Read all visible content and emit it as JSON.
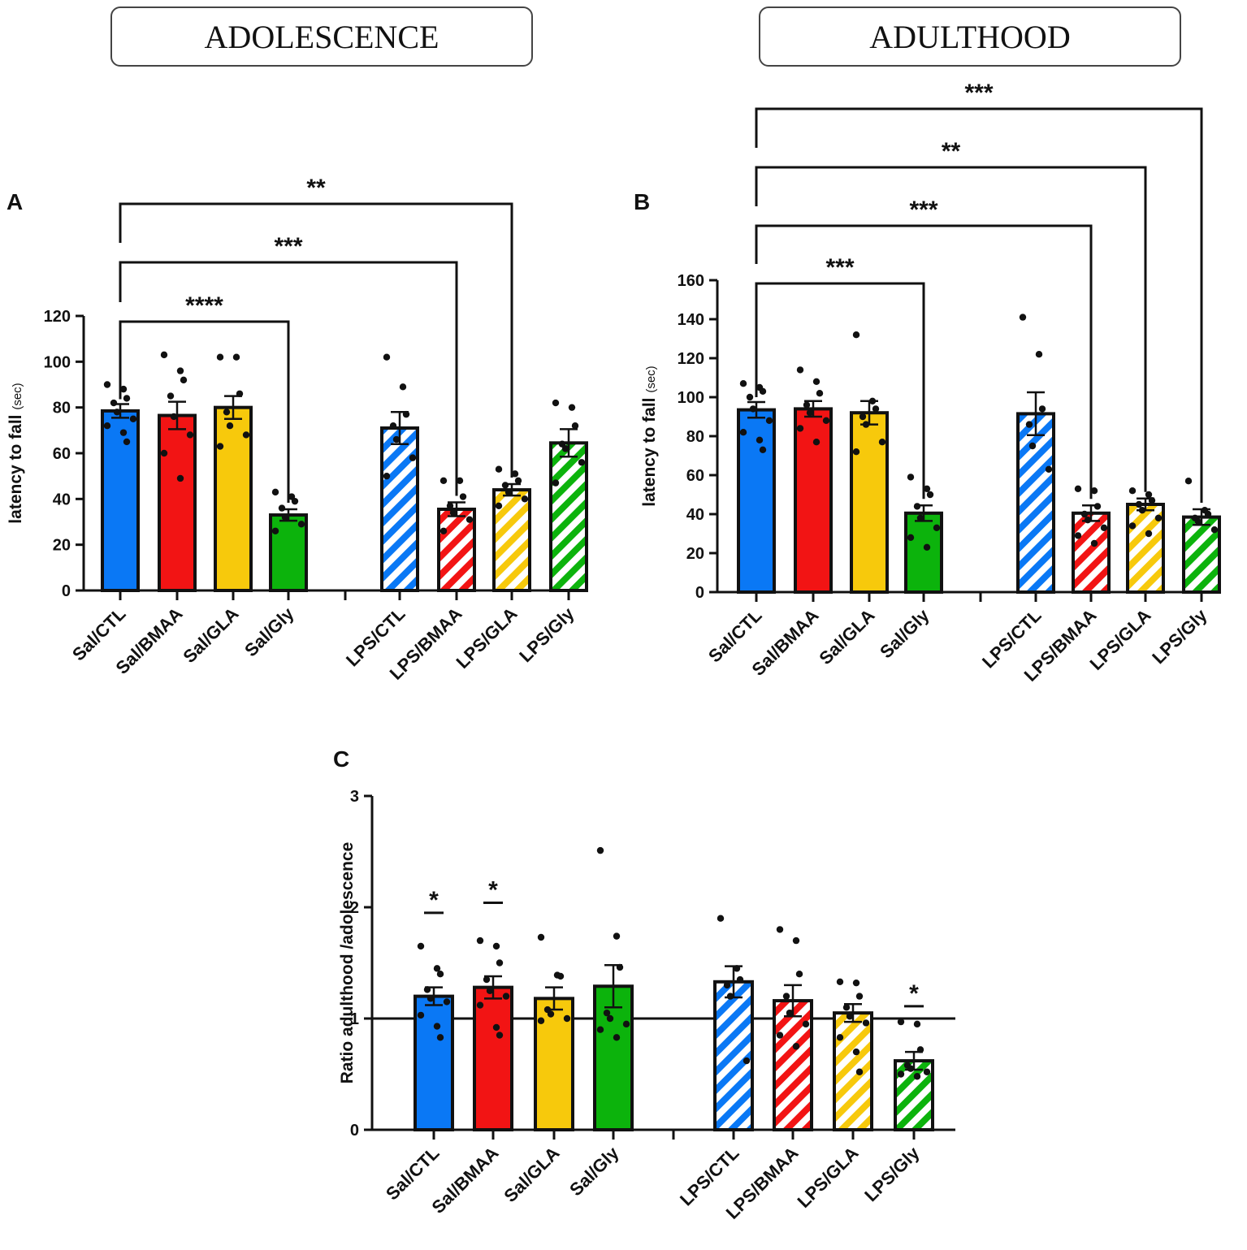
{
  "headers": {
    "left": "ADOLESCENCE",
    "right": "ADULTHOOD"
  },
  "colors": {
    "CTL": "#0a78f5",
    "BMAA": "#f21414",
    "GLA": "#f7c90c",
    "Gly": "#0cb30c",
    "outline": "#111111"
  },
  "chart_data": [
    {
      "panel": "A",
      "type": "bar",
      "ylabel": "latency to fall",
      "ylabel_unit": "(sec)",
      "ylim": [
        0,
        120
      ],
      "yticks": [
        0,
        20,
        40,
        60,
        80,
        100,
        120
      ],
      "categories": [
        "Sal/CTL",
        "Sal/BMAA",
        "Sal/GLA",
        "Sal/Gly",
        "LPS/CTL",
        "LPS/BMAA",
        "LPS/GLA",
        "LPS/Gly"
      ],
      "values": [
        78.5,
        76.5,
        80,
        33,
        71,
        35.5,
        44,
        64.5
      ],
      "sem": [
        3,
        6,
        5,
        2.5,
        7,
        3,
        2.5,
        6
      ],
      "points": [
        [
          90,
          88,
          84,
          82,
          78,
          75,
          72,
          69,
          65
        ],
        [
          103,
          96,
          92,
          85,
          76,
          68,
          60,
          49
        ],
        [
          102,
          102,
          86,
          78,
          72,
          68,
          63
        ],
        [
          43,
          41,
          39,
          36,
          32,
          29,
          26
        ],
        [
          102,
          89,
          77,
          72,
          66,
          58,
          50
        ],
        [
          48,
          48,
          41,
          37,
          34,
          31,
          26
        ],
        [
          53,
          51,
          48,
          46,
          43,
          40,
          37
        ],
        [
          82,
          80,
          72,
          64,
          62,
          56,
          47
        ]
      ],
      "brackets": [
        {
          "from": "Sal/CTL",
          "to": "Sal/Gly",
          "label": "****"
        },
        {
          "from": "Sal/CTL",
          "to": "LPS/BMAA",
          "label": "***"
        },
        {
          "from": "Sal/CTL",
          "to": "LPS/GLA",
          "label": "**"
        }
      ]
    },
    {
      "panel": "B",
      "type": "bar",
      "ylabel": "latency to fall",
      "ylabel_unit": "(sec)",
      "ylim": [
        0,
        160
      ],
      "yticks": [
        0,
        20,
        40,
        60,
        80,
        100,
        120,
        140,
        160
      ],
      "categories": [
        "Sal/CTL",
        "Sal/BMAA",
        "Sal/GLA",
        "Sal/Gly",
        "LPS/CTL",
        "LPS/BMAA",
        "LPS/GLA",
        "LPS/Gly"
      ],
      "values": [
        93.5,
        94,
        92,
        40.5,
        91.5,
        40.5,
        45,
        38.5
      ],
      "sem": [
        4,
        4,
        6,
        4,
        11,
        4,
        3,
        4
      ],
      "points": [
        [
          107,
          105,
          103,
          100,
          94,
          88,
          82,
          78,
          73
        ],
        [
          114,
          108,
          102,
          96,
          92,
          88,
          84,
          77
        ],
        [
          132,
          98,
          94,
          90,
          86,
          77,
          72
        ],
        [
          59,
          53,
          50,
          44,
          38,
          33,
          28,
          23
        ],
        [
          141,
          122,
          94,
          86,
          75,
          63
        ],
        [
          53,
          52,
          44,
          40,
          37,
          33,
          29,
          25
        ],
        [
          52,
          50,
          47,
          45,
          42,
          38,
          34,
          30
        ],
        [
          57,
          42,
          40,
          38,
          36,
          32
        ]
      ],
      "brackets": [
        {
          "from": "Sal/CTL",
          "to": "Sal/Gly",
          "label": "***"
        },
        {
          "from": "Sal/CTL",
          "to": "LPS/BMAA",
          "label": "***"
        },
        {
          "from": "Sal/CTL",
          "to": "LPS/GLA",
          "label": "**"
        },
        {
          "from": "Sal/CTL",
          "to": "LPS/Gly",
          "label": "***"
        }
      ]
    },
    {
      "panel": "C",
      "type": "bar",
      "ylabel": "Ratio adulthood /adolescence",
      "ylim": [
        0,
        3
      ],
      "yticks": [
        0,
        1,
        2,
        3
      ],
      "reference_line": 1,
      "categories": [
        "Sal/CTL",
        "Sal/BMAA",
        "Sal/GLA",
        "Sal/Gly",
        "LPS/CTL",
        "LPS/BMAA",
        "LPS/GLA",
        "LPS/Gly"
      ],
      "values": [
        1.2,
        1.28,
        1.18,
        1.29,
        1.33,
        1.16,
        1.05,
        0.62
      ],
      "sem": [
        0.08,
        0.1,
        0.1,
        0.19,
        0.14,
        0.14,
        0.08,
        0.08
      ],
      "points": [
        [
          1.65,
          1.45,
          1.4,
          1.26,
          1.18,
          1.15,
          1.03,
          0.93,
          0.83
        ],
        [
          1.7,
          1.65,
          1.5,
          1.35,
          1.25,
          1.2,
          1.12,
          0.92,
          0.85
        ],
        [
          1.73,
          1.39,
          1.38,
          1.08,
          1.04,
          1.0,
          0.98
        ],
        [
          2.51,
          1.74,
          1.46,
          1.05,
          1.0,
          0.95,
          0.9,
          0.83
        ],
        [
          1.9,
          1.45,
          1.35,
          1.3,
          1.2,
          0.62
        ],
        [
          1.8,
          1.7,
          1.4,
          1.2,
          1.05,
          0.95,
          0.85,
          0.75
        ],
        [
          1.33,
          1.32,
          1.2,
          1.1,
          1.02,
          0.96,
          0.83,
          0.7,
          0.52
        ],
        [
          0.97,
          0.95,
          0.72,
          0.58,
          0.55,
          0.52,
          0.5,
          0.48
        ]
      ],
      "significance": [
        {
          "category": "Sal/CTL",
          "label": "*",
          "level": 1.95
        },
        {
          "category": "Sal/BMAA",
          "label": "*",
          "level": 2.04
        },
        {
          "category": "LPS/Gly",
          "label": "*",
          "level": 1.11
        }
      ]
    }
  ]
}
